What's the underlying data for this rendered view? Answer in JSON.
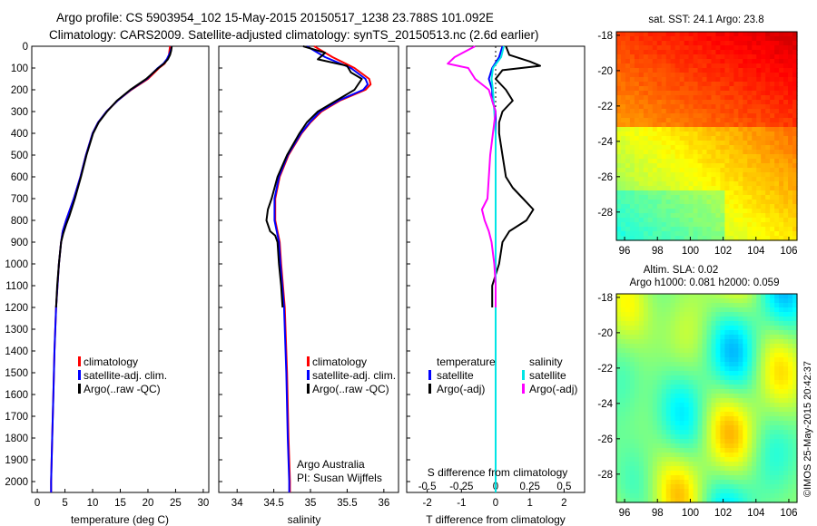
{
  "header": {
    "line1": "Argo profile: CS 5903954_102 15-May-2015 20150517_1238 23.788S 101.092E",
    "line2": "Climatology: CARS2009. Satellite-adjusted climatology: synTS_20150513.nc (2.6d earlier)"
  },
  "colors": {
    "climatology": "#ff0000",
    "satellite": "#0000ff",
    "argo": "#000000",
    "s_satellite": "#00e5e5",
    "s_argo": "#ff00ff"
  },
  "depth_axis": {
    "min": 0,
    "max": 2050,
    "ticks": [
      0,
      100,
      200,
      300,
      400,
      500,
      600,
      700,
      800,
      900,
      1000,
      1100,
      1200,
      1300,
      1400,
      1500,
      1600,
      1700,
      1800,
      1900,
      2000
    ]
  },
  "chart_data": [
    {
      "id": "temperature",
      "type": "line",
      "xlabel": "temperature (deg C)",
      "xlim": [
        -1,
        31
      ],
      "xticks": [
        0,
        5,
        10,
        15,
        20,
        25,
        30
      ],
      "legend": [
        "climatology",
        "satellite-adj. clim.",
        "Argo(..raw -QC)"
      ],
      "series": [
        {
          "name": "climatology",
          "color": "#ff0000",
          "depth": [
            0,
            20,
            40,
            60,
            80,
            100,
            150,
            200,
            250,
            300,
            350,
            400,
            500,
            600,
            700,
            800,
            850,
            900,
            1000,
            1200,
            1400,
            1600,
            1800,
            2000,
            2050
          ],
          "values": [
            24,
            23.9,
            23.8,
            23.5,
            23,
            22,
            20,
            17,
            14.5,
            12.5,
            11,
            10,
            8.8,
            7.8,
            6.6,
            5.2,
            4.6,
            4.3,
            3.9,
            3.4,
            3.1,
            2.9,
            2.7,
            2.5,
            2.5
          ]
        },
        {
          "name": "satellite-adj. clim.",
          "color": "#0000ff",
          "depth": [
            0,
            20,
            40,
            60,
            80,
            100,
            150,
            200,
            250,
            300,
            350,
            400,
            500,
            600,
            700,
            800,
            850,
            900,
            1000,
            1200,
            1400,
            1600,
            1800,
            2000,
            2050
          ],
          "values": [
            24.3,
            24.1,
            23.8,
            23.4,
            22.8,
            21.8,
            19.8,
            16.9,
            14.5,
            12.5,
            11,
            10,
            8.8,
            7.8,
            6.6,
            5.2,
            4.6,
            4.3,
            3.9,
            3.4,
            3.1,
            2.9,
            2.7,
            2.5,
            2.5
          ]
        },
        {
          "name": "Argo(..raw -QC)",
          "color": "#000000",
          "depth": [
            0,
            20,
            40,
            60,
            80,
            100,
            150,
            200,
            250,
            300,
            350,
            400,
            500,
            600,
            700,
            780,
            820,
            860,
            900,
            1000,
            1100,
            1200
          ],
          "values": [
            24.3,
            24.2,
            24,
            23.6,
            22.9,
            21.9,
            19.7,
            16.8,
            14.4,
            12.6,
            11.1,
            10.1,
            8.9,
            7.9,
            6.8,
            5.8,
            5.2,
            4.7,
            4.3,
            3.9,
            3.6,
            3.4
          ]
        }
      ]
    },
    {
      "id": "salinity",
      "type": "line",
      "xlabel": "salinity",
      "xlim": [
        33.75,
        36.2
      ],
      "xticks": [
        34,
        34.5,
        35,
        35.5,
        36
      ],
      "legend": [
        "climatology",
        "satellite-adj. clim.",
        "Argo(..raw -QC)"
      ],
      "annotation": [
        "Argo Australia",
        "PI: Susan Wijffels"
      ],
      "series": [
        {
          "name": "climatology",
          "color": "#ff0000",
          "depth": [
            0,
            50,
            100,
            150,
            175,
            200,
            250,
            300,
            350,
            400,
            500,
            600,
            700,
            800,
            900,
            1000,
            1200,
            1500,
            1800,
            2000,
            2050
          ],
          "values": [
            35.05,
            35.3,
            35.6,
            35.8,
            35.82,
            35.75,
            35.4,
            35.15,
            35,
            34.88,
            34.7,
            34.58,
            34.52,
            34.52,
            34.58,
            34.6,
            34.65,
            34.68,
            34.7,
            34.72,
            34.72
          ]
        },
        {
          "name": "satellite-adj. clim.",
          "color": "#0000ff",
          "depth": [
            0,
            50,
            100,
            150,
            175,
            200,
            250,
            300,
            350,
            400,
            500,
            600,
            700,
            800,
            900,
            1000,
            1200,
            1500,
            1800,
            2000,
            2050
          ],
          "values": [
            34.95,
            35.2,
            35.55,
            35.75,
            35.78,
            35.72,
            35.38,
            35.13,
            34.99,
            34.87,
            34.69,
            34.57,
            34.51,
            34.51,
            34.57,
            34.59,
            34.64,
            34.67,
            34.69,
            34.71,
            34.71
          ]
        },
        {
          "name": "Argo(..raw -QC)",
          "color": "#000000",
          "depth": [
            0,
            30,
            60,
            90,
            120,
            150,
            200,
            250,
            300,
            350,
            400,
            500,
            600,
            700,
            750,
            800,
            850,
            870,
            900,
            1000,
            1100,
            1200
          ],
          "values": [
            34.9,
            35.2,
            35.1,
            35.5,
            35.55,
            35.7,
            35.6,
            35.35,
            35.1,
            34.95,
            34.85,
            34.68,
            34.55,
            34.47,
            34.42,
            34.4,
            34.45,
            34.52,
            34.55,
            34.57,
            34.6,
            34.62
          ]
        }
      ]
    },
    {
      "id": "difference",
      "type": "line",
      "xlabel": "T difference from climatology",
      "x2label": "S difference from climatology",
      "xlim": [
        -2.6,
        2.6
      ],
      "xticks": [
        -2,
        -1,
        0,
        1,
        2
      ],
      "x2lim": [
        -0.65,
        0.65
      ],
      "x2ticks": [
        -0.5,
        -0.25,
        0,
        0.25,
        0.5
      ],
      "x2tick_labels": [
        "-0.5",
        "-0.25",
        "0",
        "0.25",
        "0.5"
      ],
      "legend_headers": [
        "temperature",
        "salinity"
      ],
      "legend": [
        "satellite",
        "Argo(-adj)",
        "satellite",
        "Argo(-adj)"
      ],
      "series": [
        {
          "name": "temperature satellite",
          "color": "#0000ff",
          "depth": [
            0,
            50,
            100,
            150,
            200,
            250,
            300,
            400,
            600,
            800,
            1000,
            1500,
            2000,
            2050
          ],
          "values": [
            0.2,
            0.1,
            -0.1,
            -0.2,
            -0.1,
            -0.1,
            0,
            0,
            0,
            0,
            0,
            0,
            0,
            0
          ]
        },
        {
          "name": "temperature Argo(-adj)",
          "color": "#000000",
          "depth": [
            0,
            40,
            70,
            90,
            110,
            150,
            200,
            250,
            300,
            350,
            400,
            500,
            600,
            650,
            700,
            750,
            800,
            850,
            900,
            1000,
            1100,
            1200
          ],
          "values": [
            0.3,
            0.4,
            1.0,
            1.3,
            0.2,
            0,
            0.3,
            0.5,
            0.2,
            0.1,
            0.1,
            0.2,
            0.3,
            0.5,
            0.8,
            1.1,
            0.9,
            0.4,
            0.2,
            0.1,
            -0.1,
            -0.1
          ]
        },
        {
          "name": "salinity satellite",
          "color": "#00e5e5",
          "depth": [
            0,
            50,
            100,
            150,
            200,
            300,
            400,
            600,
            800,
            1000,
            1500,
            2000,
            2050
          ],
          "values": [
            0.06,
            0.04,
            -0.02,
            -0.03,
            -0.02,
            -0.01,
            0,
            0,
            0,
            0,
            0,
            0,
            0
          ]
        },
        {
          "name": "salinity Argo(-adj)",
          "color": "#ff00ff",
          "depth": [
            0,
            50,
            80,
            100,
            150,
            200,
            300,
            400,
            500,
            600,
            700,
            750,
            800,
            850,
            900,
            1000,
            1100,
            1200
          ],
          "values": [
            -0.15,
            -0.3,
            -0.35,
            -0.2,
            -0.15,
            -0.05,
            0,
            -0.02,
            -0.04,
            -0.05,
            -0.06,
            -0.1,
            -0.08,
            -0.05,
            -0.03,
            -0.01,
            0,
            0
          ]
        }
      ]
    },
    {
      "id": "sst_map",
      "type": "heatmap",
      "title": "sat. SST: 24.1 Argo: 23.8",
      "xlim": [
        95.5,
        106.5
      ],
      "ylim": [
        -29.6,
        -17.8
      ],
      "xticks": [
        96,
        98,
        100,
        102,
        104,
        106
      ],
      "yticks": [
        -18,
        -20,
        -22,
        -24,
        -26,
        -28
      ]
    },
    {
      "id": "sla_map",
      "type": "heatmap",
      "title": "Altim. SLA: 0.02",
      "subtitle": "Argo h1000: 0.081 h2000: 0.059",
      "xlim": [
        95.5,
        106.5
      ],
      "ylim": [
        -29.6,
        -17.8
      ],
      "xticks": [
        96,
        98,
        100,
        102,
        104,
        106
      ],
      "yticks": [
        -18,
        -20,
        -22,
        -24,
        -26,
        -28
      ]
    }
  ],
  "footer": {
    "stamp": "©IMOS 25-May-2015 20:42:37"
  }
}
